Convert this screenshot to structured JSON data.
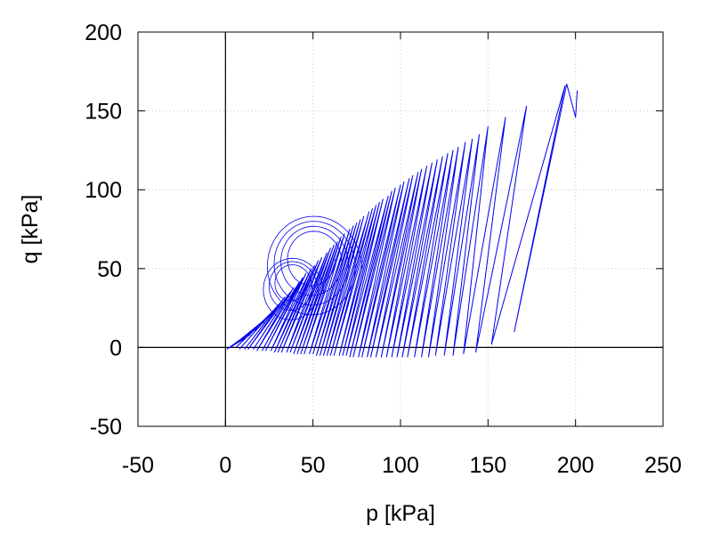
{
  "chart_data": {
    "type": "line",
    "title": "",
    "xlabel": "p [kPa]",
    "ylabel": "q [kPa]",
    "xlim": [
      -50,
      250
    ],
    "ylim": [
      -50,
      200
    ],
    "xticks": [
      -50,
      0,
      50,
      100,
      150,
      200,
      250
    ],
    "yticks": [
      -50,
      0,
      50,
      100,
      150,
      200
    ],
    "xtick_labels": [
      "-50",
      "0",
      "50",
      "100",
      "150",
      "200",
      "250"
    ],
    "ytick_labels": [
      "-50",
      "0",
      "50",
      "100",
      "150",
      "200"
    ],
    "grid": true,
    "zero_lines": true,
    "series": [
      {
        "color": "#0000ee",
        "start": [
          201,
          163
        ],
        "upper_vertices": [
          [
            201,
            163
          ],
          [
            195,
            167
          ],
          [
            194,
            166
          ],
          [
            172,
            153
          ],
          [
            160,
            146
          ],
          [
            150,
            140
          ],
          [
            145,
            135
          ],
          [
            141,
            132
          ],
          [
            137,
            130
          ],
          [
            133,
            127
          ],
          [
            130,
            125
          ],
          [
            127,
            123
          ],
          [
            124,
            121
          ],
          [
            121,
            119
          ],
          [
            118,
            117
          ],
          [
            115,
            115
          ],
          [
            112,
            113
          ],
          [
            110,
            111
          ],
          [
            107,
            109
          ],
          [
            105,
            107
          ],
          [
            102,
            105
          ],
          [
            100,
            103
          ],
          [
            97,
            101
          ],
          [
            95,
            99
          ],
          [
            93,
            96
          ],
          [
            90,
            94
          ],
          [
            88,
            92
          ],
          [
            86,
            90
          ],
          [
            84,
            88
          ],
          [
            82,
            86
          ],
          [
            79,
            83
          ],
          [
            77,
            81
          ],
          [
            75,
            79
          ],
          [
            73,
            77
          ],
          [
            71,
            75
          ],
          [
            68,
            72
          ],
          [
            66,
            70
          ],
          [
            64,
            67
          ],
          [
            62,
            65
          ],
          [
            60,
            63
          ],
          [
            58,
            60
          ],
          [
            55,
            57
          ],
          [
            53,
            55
          ],
          [
            51,
            52
          ],
          [
            49,
            50
          ],
          [
            46,
            47
          ],
          [
            44,
            44
          ],
          [
            42,
            41
          ],
          [
            39,
            38
          ],
          [
            37,
            35
          ],
          [
            34,
            32
          ],
          [
            31,
            28
          ],
          [
            28,
            24
          ],
          [
            25,
            20
          ],
          [
            22,
            16
          ],
          [
            18,
            12
          ],
          [
            14,
            8
          ],
          [
            10,
            5
          ],
          [
            5,
            2
          ],
          [
            2,
            0
          ]
        ],
        "lower_vertices": [
          [
            200,
            146
          ],
          [
            165,
            10
          ],
          [
            152,
            2
          ],
          [
            143,
            -3
          ],
          [
            136,
            -4
          ],
          [
            130,
            -5
          ],
          [
            125,
            -5
          ],
          [
            120,
            -5
          ],
          [
            116,
            -6
          ],
          [
            112,
            -6
          ],
          [
            108,
            -6
          ],
          [
            104,
            -6
          ],
          [
            101,
            -6
          ],
          [
            98,
            -6
          ],
          [
            95,
            -6
          ],
          [
            92,
            -6
          ],
          [
            89,
            -6
          ],
          [
            86,
            -6
          ],
          [
            83,
            -6
          ],
          [
            81,
            -6
          ],
          [
            78,
            -6
          ],
          [
            76,
            -6
          ],
          [
            73,
            -6
          ],
          [
            71,
            -6
          ],
          [
            69,
            -5
          ],
          [
            67,
            -5
          ],
          [
            65,
            -5
          ],
          [
            62,
            -5
          ],
          [
            60,
            -5
          ],
          [
            58,
            -5
          ],
          [
            56,
            -5
          ],
          [
            54,
            -5
          ],
          [
            52,
            -5
          ],
          [
            50,
            -4
          ],
          [
            48,
            -4
          ],
          [
            45,
            -4
          ],
          [
            43,
            -4
          ],
          [
            41,
            -4
          ],
          [
            39,
            -4
          ],
          [
            37,
            -3
          ],
          [
            35,
            -3
          ],
          [
            32,
            -3
          ],
          [
            30,
            -3
          ],
          [
            28,
            -3
          ],
          [
            26,
            -2
          ],
          [
            23,
            -2
          ],
          [
            21,
            -2
          ],
          [
            18,
            -2
          ],
          [
            16,
            -1
          ],
          [
            13,
            -1
          ],
          [
            11,
            -1
          ],
          [
            8,
            -1
          ],
          [
            6,
            0
          ],
          [
            3,
            0
          ],
          [
            1,
            -1
          ]
        ],
        "inner_loops": [
          {
            "center": [
              50,
              50
            ],
            "width": 28,
            "height": 34,
            "turns": 4
          },
          {
            "center": [
              38,
              35
            ],
            "width": 18,
            "height": 22,
            "turns": 3
          }
        ]
      }
    ]
  }
}
